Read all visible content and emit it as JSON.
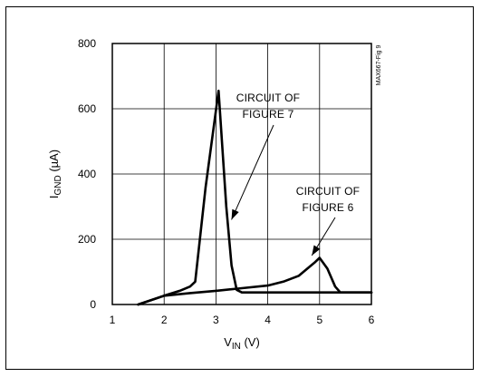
{
  "chart_data": {
    "type": "line",
    "xlim": [
      1,
      6
    ],
    "ylim": [
      0,
      800
    ],
    "xticks": [
      "1",
      "2",
      "3",
      "4",
      "5",
      "6"
    ],
    "yticks": [
      "0",
      "200",
      "400",
      "600",
      "800"
    ],
    "xlabel": {
      "main": "V",
      "sub": "IN",
      "unit": " (V)"
    },
    "ylabel": {
      "main": "I",
      "sub": "GND",
      "unit": " (µA)"
    },
    "grid": true,
    "figure_id": "MAX667-Fig 9",
    "annotations": [
      {
        "lines": [
          "CIRCUIT OF",
          "FIGURE 7"
        ],
        "points_to": [
          3.3,
          260
        ]
      },
      {
        "lines": [
          "CIRCUIT OF",
          "FIGURE 6"
        ],
        "points_to": [
          4.85,
          150
        ]
      }
    ],
    "series": [
      {
        "points": [
          [
            1.5,
            0
          ],
          [
            2.0,
            27
          ],
          [
            2.3,
            42
          ],
          [
            2.5,
            55
          ],
          [
            2.6,
            70
          ],
          [
            2.8,
            360
          ],
          [
            3.05,
            655
          ],
          [
            3.2,
            300
          ],
          [
            3.3,
            120
          ],
          [
            3.4,
            45
          ],
          [
            3.5,
            37
          ],
          [
            4.0,
            37
          ],
          [
            5.0,
            37
          ],
          [
            6.0,
            37
          ]
        ]
      },
      {
        "points": [
          [
            1.5,
            0
          ],
          [
            2.0,
            27
          ],
          [
            2.5,
            35
          ],
          [
            3.0,
            42
          ],
          [
            3.5,
            50
          ],
          [
            4.0,
            58
          ],
          [
            4.3,
            70
          ],
          [
            4.6,
            88
          ],
          [
            4.8,
            115
          ],
          [
            4.9,
            128
          ],
          [
            5.0,
            143
          ],
          [
            5.15,
            110
          ],
          [
            5.3,
            55
          ],
          [
            5.4,
            37
          ],
          [
            5.6,
            37
          ],
          [
            6.0,
            37
          ]
        ]
      }
    ]
  }
}
